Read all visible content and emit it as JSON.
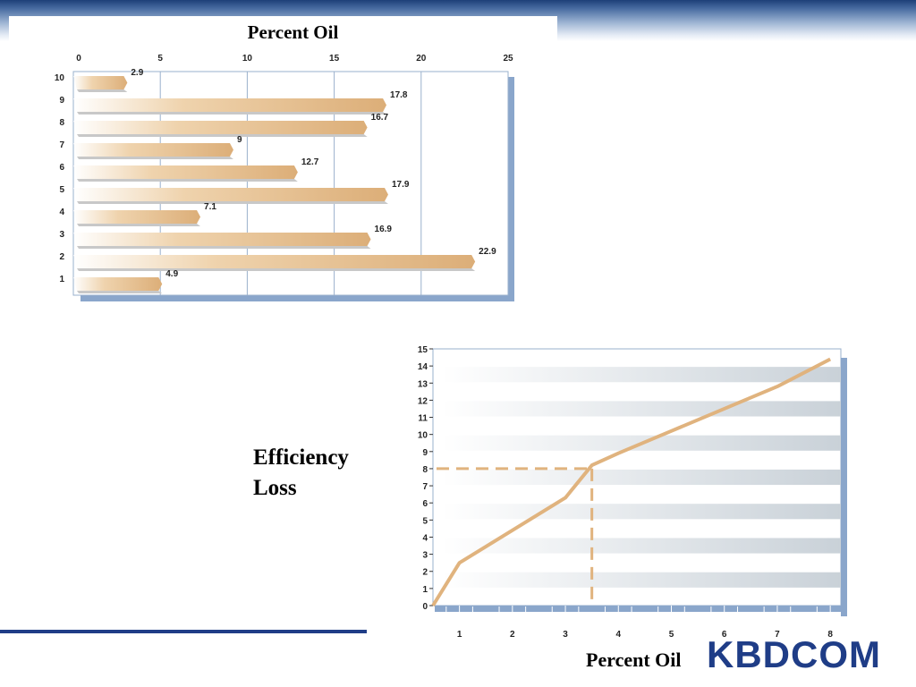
{
  "chart_data": [
    {
      "type": "bar",
      "orientation": "horizontal",
      "title": "Percent Oil",
      "categories": [
        "10",
        "9",
        "8",
        "7",
        "6",
        "5",
        "4",
        "3",
        "2",
        "1"
      ],
      "values": [
        2.9,
        17.8,
        16.7,
        9,
        12.7,
        17.9,
        7.1,
        16.9,
        22.9,
        4.9
      ],
      "value_labels": [
        "2.9",
        "17.8",
        "16.7",
        "9",
        "12.7",
        "17.9",
        "7.1",
        "16.9",
        "22.9",
        "4.9"
      ],
      "xticks": [
        "0",
        "5",
        "10",
        "15",
        "20",
        "25"
      ],
      "xlim": [
        0,
        25
      ],
      "bar_color": "#e0b37e",
      "grid": "vertical"
    },
    {
      "type": "line",
      "x": [
        0.5,
        1,
        2,
        3,
        3.5,
        4,
        5,
        6,
        7,
        8
      ],
      "y": [
        0,
        2.5,
        4.4,
        6.3,
        8.2,
        8.9,
        10.2,
        11.5,
        12.8,
        14.4
      ],
      "xlabel": "Percent Oil",
      "ylabel": "Efficiency Loss",
      "xticks": [
        "1",
        "2",
        "3",
        "4",
        "5",
        "6",
        "7",
        "8"
      ],
      "yticks": [
        "0",
        "1",
        "2",
        "3",
        "4",
        "5",
        "6",
        "7",
        "8",
        "9",
        "10",
        "11",
        "12",
        "13",
        "14",
        "15"
      ],
      "xlim": [
        0.5,
        8.2
      ],
      "ylim": [
        0,
        15
      ],
      "line_color": "#e0b37e",
      "guide": {
        "x": 3.5,
        "y": 8
      }
    }
  ],
  "logo": {
    "text": "KBDCOM"
  }
}
